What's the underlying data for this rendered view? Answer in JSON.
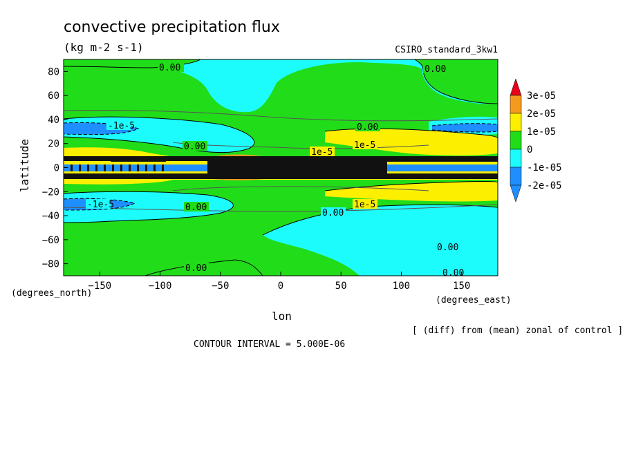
{
  "chart_data": {
    "type": "heatmap",
    "title": "convective precipitation flux",
    "units": "(kg m-2 s-1)",
    "dataset": "CSIRO_standard_3kw1",
    "xlabel": "lon",
    "ylabel": "latitude",
    "x_units": "(degrees_east)",
    "y_units": "(degrees_north)",
    "x_ticks": [
      -150,
      -100,
      -50,
      0,
      50,
      100,
      150
    ],
    "y_ticks": [
      80,
      60,
      40,
      20,
      0,
      -20,
      -40,
      -60,
      -80
    ],
    "xlim": [
      -180,
      180
    ],
    "ylim": [
      -90,
      90
    ],
    "note": "[ (diff) from (mean) zonal of control ]",
    "contour_interval": "CONTOUR INTERVAL = 5.000E-06",
    "legend": {
      "position": "right",
      "labels": [
        "3e-05",
        "2e-05",
        "1e-05",
        "0",
        "-1e-05",
        "-2e-05"
      ],
      "colors": [
        "#e8001a",
        "#f49b1f",
        "#fcf000",
        "#21dc19",
        "#1dfcfc",
        "#1f8fff"
      ]
    },
    "contour_labels": [
      "0.00",
      "1e-5",
      "-1e-5"
    ],
    "colors": {
      "green": "#21dc19",
      "cyan": "#1dfcfc",
      "blue": "#1f8fff",
      "yellow": "#fcf000",
      "orange": "#f49b1f",
      "red": "#e8001a",
      "dark": "#111111"
    }
  }
}
